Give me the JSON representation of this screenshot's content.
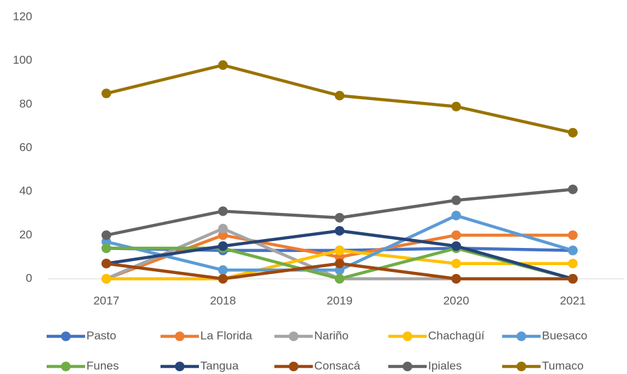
{
  "chart_data": {
    "type": "line",
    "categories": [
      "2017",
      "2018",
      "2019",
      "2020",
      "2021"
    ],
    "ylim": [
      0,
      120
    ],
    "yticks": [
      0,
      20,
      40,
      60,
      80,
      100,
      120
    ],
    "grid": false,
    "legend": "bottom",
    "series": [
      {
        "name": "Pasto",
        "color": "#4472c4",
        "values": [
          14,
          13,
          13,
          14,
          13
        ]
      },
      {
        "name": "La Florida",
        "color": "#ed7d31",
        "values": [
          0,
          20,
          10,
          20,
          20
        ]
      },
      {
        "name": "Nariño",
        "color": "#a5a5a5",
        "values": [
          0,
          23,
          0,
          0,
          0
        ]
      },
      {
        "name": "Chachagüí",
        "color": "#ffc000",
        "values": [
          0,
          0,
          13,
          7,
          7
        ]
      },
      {
        "name": "Buesaco",
        "color": "#5b9bd5",
        "values": [
          17,
          4,
          4,
          29,
          13
        ]
      },
      {
        "name": "Funes",
        "color": "#70ad47",
        "values": [
          14,
          14,
          0,
          14,
          0
        ]
      },
      {
        "name": "Tangua",
        "color": "#264478",
        "values": [
          7,
          15,
          22,
          15,
          0
        ]
      },
      {
        "name": "Consacá",
        "color": "#9e480e",
        "values": [
          7,
          0,
          7,
          0,
          0
        ]
      },
      {
        "name": "Ipiales",
        "color": "#636363",
        "values": [
          20,
          31,
          28,
          36,
          41
        ]
      },
      {
        "name": "Tumaco",
        "color": "#997300",
        "values": [
          85,
          98,
          84,
          79,
          67
        ]
      }
    ]
  }
}
